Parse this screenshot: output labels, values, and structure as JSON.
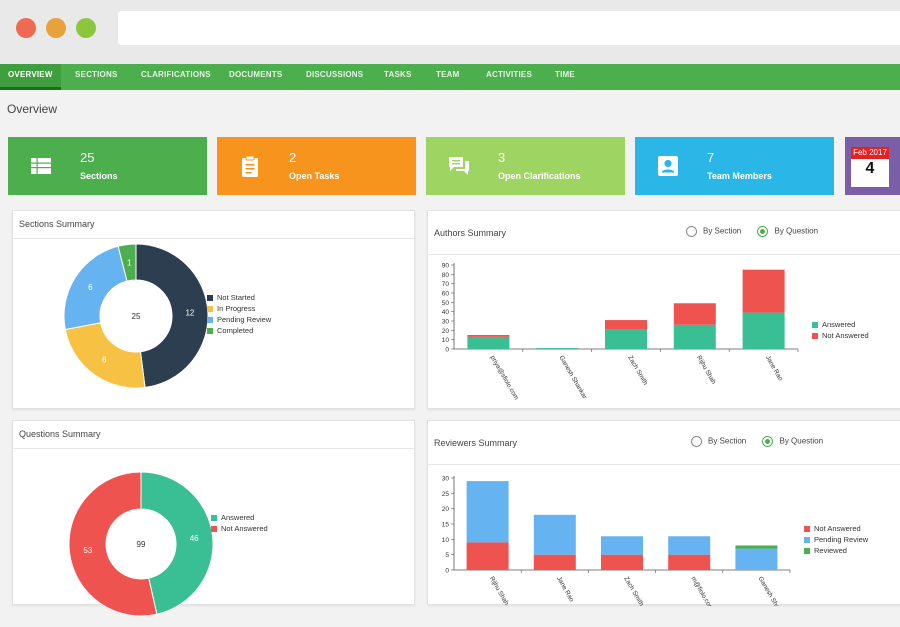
{
  "nav": {
    "tabs": [
      "OVERVIEW",
      "SECTIONS",
      "CLARIFICATIONS",
      "DOCUMENTS",
      "DISCUSSIONS",
      "TASKS",
      "TEAM",
      "ACTIVITIES",
      "TIME"
    ],
    "active": "OVERVIEW"
  },
  "page": {
    "title": "Overview"
  },
  "stats": [
    {
      "value": "25",
      "label": "Sections",
      "color": "#4cae4c",
      "icon": "table-icon"
    },
    {
      "value": "2",
      "label": "Open Tasks",
      "color": "#f7941d",
      "icon": "clipboard-icon"
    },
    {
      "value": "3",
      "label": "Open Clarifications",
      "color": "#9ed461",
      "icon": "chat-icon"
    },
    {
      "value": "7",
      "label": "Team Members",
      "color": "#2ab7e8",
      "icon": "contact-card-icon"
    }
  ],
  "calendar": {
    "month": "Feb 2017",
    "day": "4"
  },
  "colors": {
    "not_started": "#2c3e50",
    "in_progress": "#f7c244",
    "pending_review": "#66b3f2",
    "completed": "#4cae4c",
    "answered": "#3abf94",
    "not_answered": "#ef5350",
    "reviewed": "#4cae4c"
  },
  "sections_summary": {
    "title": "Sections Summary",
    "center": "25",
    "legend": [
      "Not Started",
      "In Progress",
      "Pending Review",
      "Completed"
    ]
  },
  "questions_summary": {
    "title": "Questions Summary",
    "center": "99",
    "legend": [
      "Answered",
      "Not Answered"
    ]
  },
  "authors_summary": {
    "title": "Authors Summary",
    "radio": [
      "By Section",
      "By Question"
    ],
    "selected": "By Question",
    "legend": [
      "Answered",
      "Not Answered"
    ]
  },
  "reviewers_summary": {
    "title": "Reviewers Summary",
    "radio": [
      "By Section",
      "By Question"
    ],
    "selected": "By Question",
    "legend": [
      "Not Answered",
      "Pending Review",
      "Reviewed"
    ]
  },
  "chart_data": [
    {
      "type": "pie",
      "title": "Sections Summary",
      "labels": [
        "Not Started",
        "In Progress",
        "Pending Review",
        "Completed"
      ],
      "values": [
        12,
        6,
        6,
        1
      ],
      "center_label": "25"
    },
    {
      "type": "pie",
      "title": "Questions Summary",
      "labels": [
        "Answered",
        "Not Answered"
      ],
      "values": [
        46,
        53
      ],
      "center_label": "99"
    },
    {
      "type": "bar",
      "stacked": true,
      "title": "Authors Summary",
      "categories": [
        "priya@sfiolo.com",
        "Ganesh Shankar",
        "Zach Smith",
        "Rijhu Shah",
        "Jane Rao"
      ],
      "series": [
        {
          "name": "Answered",
          "values": [
            13,
            1,
            21,
            26,
            39
          ]
        },
        {
          "name": "Not Answered",
          "values": [
            2,
            0,
            10,
            23,
            46
          ]
        }
      ],
      "ylim": [
        0,
        90
      ],
      "yticks": [
        0,
        10,
        20,
        30,
        40,
        50,
        60,
        70,
        80,
        90
      ]
    },
    {
      "type": "bar",
      "stacked": true,
      "title": "Reviewers Summary",
      "categories": [
        "Rijhu Shah",
        "Jane Rao",
        "Zach Smith",
        "m@fiolo.com",
        "Ganesh Shankar"
      ],
      "series": [
        {
          "name": "Not Answered",
          "values": [
            9,
            5,
            5,
            5,
            0
          ]
        },
        {
          "name": "Pending Review",
          "values": [
            20,
            13,
            6,
            6,
            7
          ]
        },
        {
          "name": "Reviewed",
          "values": [
            0,
            0,
            0,
            0,
            1
          ]
        }
      ],
      "ylim": [
        0,
        30
      ],
      "yticks": [
        0,
        5,
        10,
        15,
        20,
        25,
        30
      ]
    }
  ]
}
